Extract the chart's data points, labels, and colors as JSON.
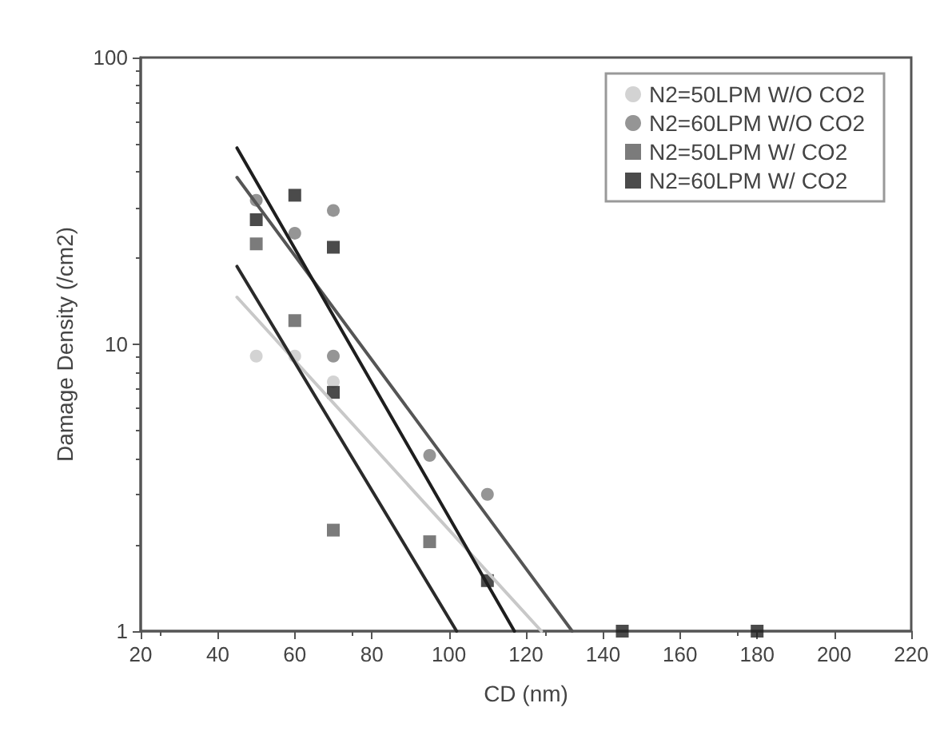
{
  "chart_data": {
    "type": "scatter",
    "xlabel": "CD (nm)",
    "ylabel": "Damage Density (/cm2)",
    "xlim": [
      20,
      220
    ],
    "xticks": [
      20,
      40,
      60,
      80,
      100,
      120,
      140,
      160,
      180,
      200,
      220
    ],
    "ylim": [
      1,
      100
    ],
    "yticks": [
      1,
      10,
      100
    ],
    "log": "y",
    "grid": false,
    "legend": "top right",
    "series": [
      {
        "name": "N2=50LPM W/O CO2",
        "color": "#c8c8c8",
        "marker": "circle",
        "x": [
          50,
          60,
          70
        ],
        "values": [
          9.1,
          9.1,
          7.4
        ]
      },
      {
        "name": "N2=60LPM W/O CO2",
        "color": "#7a7a7a",
        "marker": "circle",
        "x": [
          50,
          60,
          70,
          70,
          95,
          110
        ],
        "values": [
          31.8,
          24.4,
          29.3,
          9.1,
          4.1,
          3.0
        ]
      },
      {
        "name": "N2=50LPM W/ CO2",
        "color": "#5a5a5a",
        "marker": "square",
        "x": [
          50,
          60,
          70,
          95
        ],
        "values": [
          22.4,
          12.1,
          2.25,
          2.05
        ]
      },
      {
        "name": "N2=60LPM W/ CO2",
        "color": "#1e1e1e",
        "marker": "square",
        "x": [
          50,
          60,
          70,
          70,
          110,
          145,
          180
        ],
        "values": [
          27.2,
          33.1,
          21.8,
          6.8,
          1.5,
          1,
          1
        ]
      },
      {
        "type": "line",
        "color": "#c8c8c8",
        "marker": "none",
        "x": [
          45,
          124
        ],
        "values": [
          14.6,
          1
        ]
      },
      {
        "type": "line",
        "color": "#555555",
        "marker": "none",
        "x": [
          45,
          132
        ],
        "values": [
          38.2,
          1
        ]
      },
      {
        "type": "line",
        "color": "#2a2a2a",
        "marker": "none",
        "x": [
          45,
          102
        ],
        "values": [
          18.7,
          1
        ]
      },
      {
        "type": "line",
        "color": "#1e1e1e",
        "marker": "none",
        "x": [
          45,
          117
        ],
        "values": [
          48.4,
          1
        ]
      }
    ]
  }
}
